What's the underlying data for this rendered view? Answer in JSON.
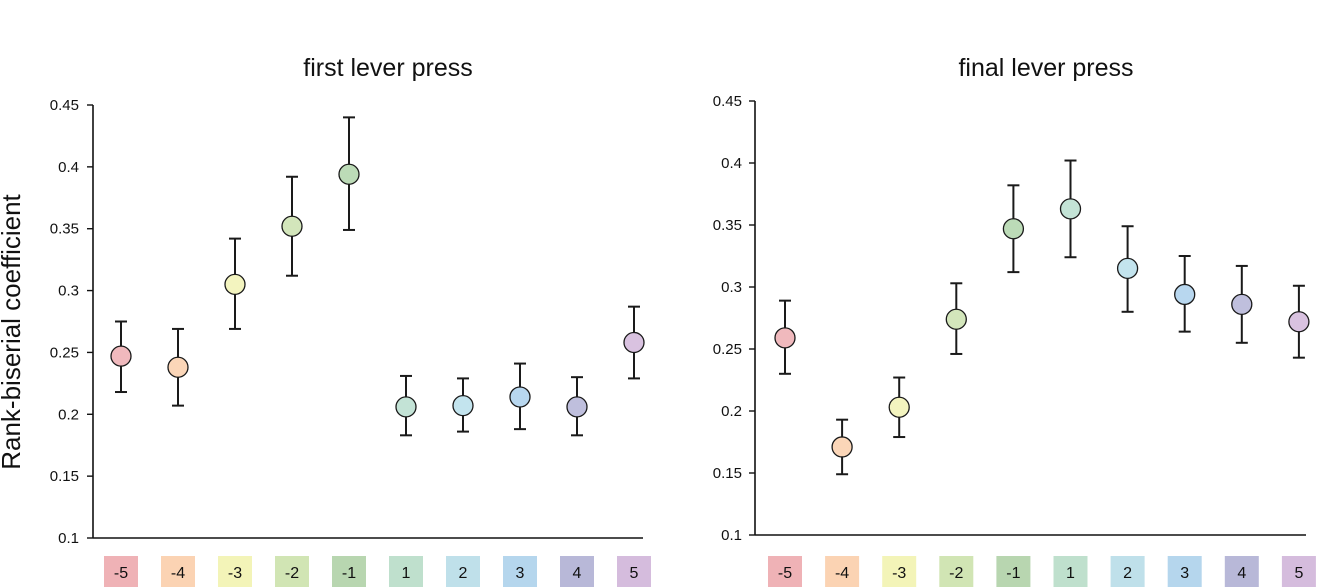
{
  "ylabel": "Rank-biserial coefficient",
  "chart_data": [
    {
      "type": "scatter",
      "title": "first lever press",
      "ylabel": "Rank-biserial coefficient",
      "xlabel": "",
      "ylim": [
        0.1,
        0.45
      ],
      "yticks": [
        "0.1",
        "0.15",
        "0.2",
        "0.25",
        "0.3",
        "0.35",
        "0.4",
        "0.45"
      ],
      "categories": [
        "-5",
        "-4",
        "-3",
        "-2",
        "-1",
        "1",
        "2",
        "3",
        "4",
        "5"
      ],
      "values": [
        0.247,
        0.238,
        0.305,
        0.352,
        0.394,
        0.206,
        0.207,
        0.214,
        0.206,
        0.258
      ],
      "error_low": [
        0.218,
        0.207,
        0.269,
        0.312,
        0.349,
        0.183,
        0.186,
        0.188,
        0.183,
        0.229
      ],
      "error_high": [
        0.275,
        0.269,
        0.342,
        0.392,
        0.44,
        0.231,
        0.229,
        0.241,
        0.23,
        0.287
      ],
      "grid": false,
      "legend": "category swatches below x-axis"
    },
    {
      "type": "scatter",
      "title": "final lever press",
      "ylabel": "",
      "xlabel": "",
      "ylim": [
        0.1,
        0.45
      ],
      "yticks": [
        "0.1",
        "0.15",
        "0.2",
        "0.25",
        "0.3",
        "0.35",
        "0.4",
        "0.45"
      ],
      "categories": [
        "-5",
        "-4",
        "-3",
        "-2",
        "-1",
        "1",
        "2",
        "3",
        "4",
        "5"
      ],
      "values": [
        0.259,
        0.171,
        0.203,
        0.274,
        0.347,
        0.363,
        0.315,
        0.294,
        0.286,
        0.272
      ],
      "error_low": [
        0.23,
        0.149,
        0.179,
        0.246,
        0.312,
        0.324,
        0.28,
        0.264,
        0.255,
        0.243
      ],
      "error_high": [
        0.289,
        0.193,
        0.227,
        0.303,
        0.382,
        0.402,
        0.349,
        0.325,
        0.317,
        0.301
      ],
      "grid": false,
      "legend": "category swatches below x-axis"
    }
  ],
  "colors": {
    "marker_fills": [
      "#f0b9bd",
      "#fbd6b8",
      "#f3f4bf",
      "#d3e6bb",
      "#bcdbb7",
      "#c3e3d6",
      "#c3e4ee",
      "#b8d7ef",
      "#bfbfdd",
      "#d9c2e0"
    ],
    "swatch_fills": [
      "#efb2b6",
      "#fbd3b3",
      "#f3f4b8",
      "#d1e5b4",
      "#b8d6b0",
      "#bfe0cd",
      "#bfe0ea",
      "#b5d6ed",
      "#b8b8d8",
      "#d5bcdd"
    ],
    "marker_stroke": "#1a1a1a",
    "error_bar": "#1a1a1a",
    "axis": "#111111"
  }
}
